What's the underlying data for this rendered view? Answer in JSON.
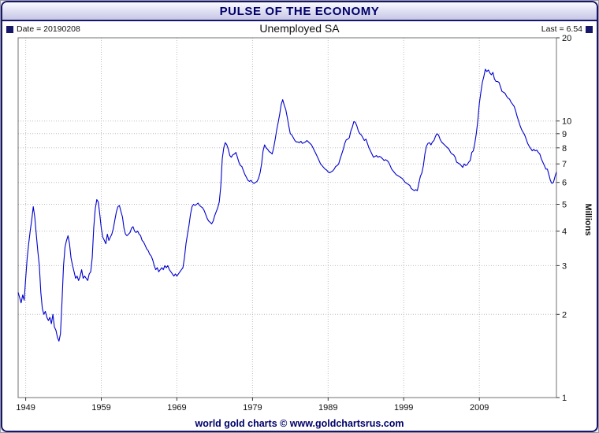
{
  "window": {
    "title": "PULSE OF THE ECONOMY"
  },
  "header": {
    "date_label": "Date = 20190208",
    "subtitle": "Unemployed SA",
    "last_label": "Last = 6.54"
  },
  "footer": {
    "credit": "world gold charts © www.goldchartsrus.com"
  },
  "chart_data": {
    "type": "line",
    "title": "PULSE OF THE ECONOMY",
    "subtitle": "Unemployed SA",
    "date": "20190208",
    "last_value": 6.54,
    "ylabel": "Millions",
    "xlabel": "",
    "y_scale": "log",
    "y_axis_side": "right",
    "grid": true,
    "legend": "none",
    "line_color": "#0000cc",
    "x_range": [
      1948,
      2019.2
    ],
    "y_range": [
      1,
      20
    ],
    "x_ticks": [
      1949,
      1959,
      1969,
      1979,
      1989,
      1999,
      2009
    ],
    "y_ticks": [
      1,
      2,
      3,
      4,
      5,
      6,
      7,
      8,
      9,
      10,
      20
    ],
    "series": [
      {
        "name": "Unemployed SA",
        "units": "millions",
        "x_start": 1948.0,
        "x_step": 0.2,
        "values": [
          2.4,
          2.3,
          2.2,
          2.35,
          2.25,
          2.7,
          3.2,
          3.6,
          4.0,
          4.4,
          4.9,
          4.5,
          3.9,
          3.4,
          3.0,
          2.4,
          2.1,
          2.0,
          2.05,
          1.95,
          1.9,
          1.95,
          1.85,
          2.0,
          1.8,
          1.75,
          1.65,
          1.6,
          1.7,
          2.2,
          3.0,
          3.5,
          3.7,
          3.85,
          3.6,
          3.2,
          3.0,
          2.85,
          2.7,
          2.75,
          2.65,
          2.75,
          2.9,
          2.7,
          2.75,
          2.7,
          2.65,
          2.8,
          2.85,
          3.2,
          4.1,
          4.8,
          5.2,
          5.1,
          4.6,
          4.1,
          3.8,
          3.7,
          3.6,
          3.9,
          3.7,
          3.8,
          3.9,
          4.1,
          4.4,
          4.7,
          4.9,
          4.95,
          4.7,
          4.5,
          4.1,
          3.9,
          3.85,
          3.9,
          3.95,
          4.1,
          4.15,
          4.0,
          3.95,
          4.0,
          3.9,
          3.85,
          3.7,
          3.65,
          3.55,
          3.45,
          3.4,
          3.3,
          3.25,
          3.15,
          3.0,
          2.9,
          2.95,
          2.85,
          2.9,
          2.95,
          2.9,
          3.0,
          2.95,
          3.0,
          2.9,
          2.85,
          2.8,
          2.75,
          2.8,
          2.75,
          2.8,
          2.85,
          2.9,
          2.95,
          3.2,
          3.6,
          3.9,
          4.2,
          4.6,
          4.9,
          5.0,
          4.95,
          5.0,
          5.05,
          4.95,
          4.9,
          4.85,
          4.75,
          4.6,
          4.45,
          4.35,
          4.3,
          4.25,
          4.35,
          4.55,
          4.7,
          4.85,
          5.1,
          5.8,
          7.3,
          8.0,
          8.35,
          8.2,
          7.9,
          7.5,
          7.4,
          7.55,
          7.6,
          7.7,
          7.4,
          7.1,
          6.9,
          6.85,
          6.6,
          6.4,
          6.25,
          6.1,
          6.05,
          6.1,
          6.0,
          5.95,
          6.0,
          6.05,
          6.2,
          6.5,
          7.0,
          7.8,
          8.2,
          8.0,
          7.9,
          7.75,
          7.7,
          7.6,
          8.0,
          8.6,
          9.3,
          9.9,
          10.6,
          11.5,
          11.95,
          11.4,
          11.0,
          10.3,
          9.6,
          9.0,
          8.9,
          8.7,
          8.5,
          8.4,
          8.4,
          8.35,
          8.45,
          8.3,
          8.35,
          8.4,
          8.5,
          8.4,
          8.3,
          8.2,
          8.0,
          7.8,
          7.6,
          7.4,
          7.2,
          7.0,
          6.9,
          6.8,
          6.7,
          6.65,
          6.55,
          6.5,
          6.55,
          6.6,
          6.7,
          6.85,
          6.9,
          7.0,
          7.3,
          7.6,
          7.9,
          8.3,
          8.55,
          8.6,
          8.7,
          9.2,
          9.5,
          9.95,
          9.9,
          9.6,
          9.2,
          9.0,
          8.9,
          8.7,
          8.5,
          8.6,
          8.3,
          8.0,
          7.8,
          7.6,
          7.4,
          7.45,
          7.5,
          7.4,
          7.45,
          7.4,
          7.3,
          7.2,
          7.25,
          7.2,
          7.1,
          6.9,
          6.7,
          6.6,
          6.5,
          6.4,
          6.35,
          6.3,
          6.25,
          6.2,
          6.1,
          6.0,
          5.95,
          5.9,
          5.85,
          5.7,
          5.65,
          5.6,
          5.65,
          5.6,
          5.95,
          6.3,
          6.5,
          6.9,
          7.6,
          8.1,
          8.3,
          8.35,
          8.2,
          8.4,
          8.5,
          8.8,
          9.0,
          8.9,
          8.6,
          8.4,
          8.3,
          8.2,
          8.1,
          8.0,
          7.9,
          7.7,
          7.6,
          7.55,
          7.4,
          7.1,
          7.05,
          7.0,
          6.9,
          6.8,
          7.0,
          6.9,
          6.95,
          7.1,
          7.2,
          7.7,
          7.8,
          8.3,
          9.0,
          10.0,
          11.6,
          12.7,
          13.8,
          14.5,
          15.4,
          15.1,
          15.3,
          14.9,
          14.7,
          15.0,
          14.2,
          13.9,
          13.9,
          13.8,
          13.3,
          12.8,
          12.7,
          12.6,
          12.3,
          12.1,
          12.0,
          11.7,
          11.5,
          11.3,
          10.9,
          10.4,
          10.0,
          9.6,
          9.3,
          9.1,
          8.9,
          8.6,
          8.3,
          8.1,
          7.95,
          7.8,
          7.9,
          7.8,
          7.85,
          7.7,
          7.6,
          7.3,
          7.1,
          6.9,
          6.7,
          6.7,
          6.4,
          6.1,
          5.95,
          6.0,
          6.29,
          6.54
        ]
      }
    ]
  }
}
